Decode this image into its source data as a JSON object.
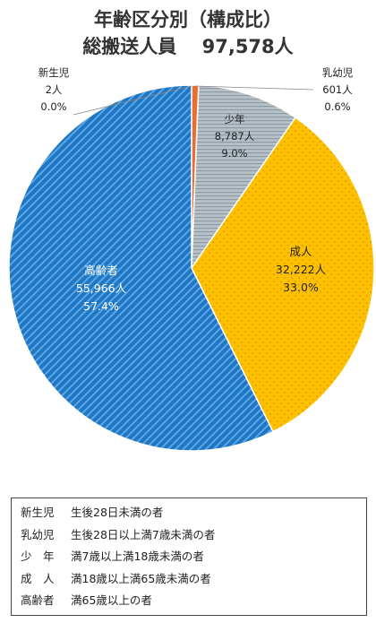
{
  "title": "年齢区分別（構成比）",
  "subtitle": "総搬送人員　 97,578人",
  "chart_data": {
    "type": "pie",
    "total": 97578,
    "slices": [
      {
        "name": "新生児",
        "count": 2,
        "count_label": "2人",
        "pct": 0.0,
        "pct_label": "0.0%",
        "color": "#f0a000"
      },
      {
        "name": "乳幼児",
        "count": 601,
        "count_label": "601人",
        "pct": 0.6,
        "pct_label": "0.6%",
        "color": "#ef6c2d"
      },
      {
        "name": "少年",
        "count": 8787,
        "count_label": "8,787人",
        "pct": 9.0,
        "pct_label": "9.0%",
        "color": "#a9b4bc"
      },
      {
        "name": "成人",
        "count": 32222,
        "count_label": "32,222人",
        "pct": 33.0,
        "pct_label": "33.0%",
        "color": "#ffc000"
      },
      {
        "name": "高齢者",
        "count": 55966,
        "count_label": "55,966人",
        "pct": 57.4,
        "pct_label": "57.4%",
        "color": "#1f76c2"
      }
    ]
  },
  "legend": [
    {
      "term": "新生児",
      "desc": "生後28日未満の者"
    },
    {
      "term": "乳幼児",
      "desc": "生後28日以上満7歳未満の者"
    },
    {
      "term": "少　年",
      "desc": "満7歳以上満18歳未満の者"
    },
    {
      "term": "成　人",
      "desc": "満18歳以上満65歳未満の者"
    },
    {
      "term": "高齢者",
      "desc": "満65歳以上の者"
    }
  ]
}
